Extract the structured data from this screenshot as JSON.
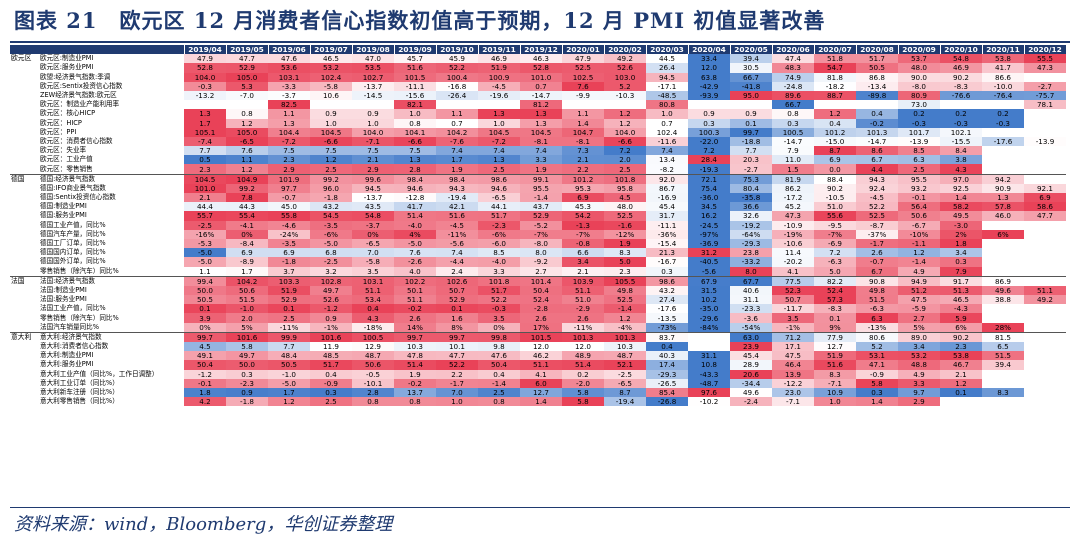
{
  "title": "图表 21　欧元区 12 月消费者信心指数初值高于预期，12 月 PMI 初值显著改善",
  "source": "资料来源：wind，Bloomberg，华创证券整理",
  "colors": {
    "header": "#1f3a70",
    "high": "#e8384f",
    "low": "#2f6dc4",
    "neutral": "#ffffff"
  },
  "months": [
    "2019/04",
    "2019/05",
    "2019/06",
    "2019/07",
    "2019/08",
    "2019/09",
    "2019/10",
    "2019/11",
    "2019/12",
    "2020/01",
    "2020/02",
    "2020/03",
    "2020/04",
    "2020/05",
    "2020/06",
    "2020/07",
    "2020/08",
    "2020/09",
    "2020/10",
    "2020/11",
    "2020/12"
  ],
  "groups": [
    {
      "region": "欧元区",
      "rows": [
        {
          "label": "欧元区:制造业PMI",
          "values": [
            "47.9",
            "47.7",
            "47.6",
            "46.5",
            "47.0",
            "45.7",
            "45.9",
            "46.9",
            "46.3",
            "47.9",
            "49.2",
            "44.5",
            "33.4",
            "39.4",
            "47.4",
            "51.8",
            "51.7",
            "53.7",
            "54.8",
            "53.8",
            "55.5"
          ]
        },
        {
          "label": "欧元区:服务业PMI",
          "values": [
            "52.8",
            "52.9",
            "53.6",
            "53.2",
            "53.5",
            "51.6",
            "52.2",
            "51.9",
            "52.8",
            "52.5",
            "52.6",
            "26.4",
            "12.0",
            "30.5",
            "48.3",
            "54.7",
            "50.5",
            "48.0",
            "46.9",
            "41.7",
            "47.3"
          ]
        },
        {
          "label": "欧盟:经济景气指数:季调",
          "values": [
            "104.0",
            "105.0",
            "103.1",
            "102.4",
            "102.7",
            "101.5",
            "100.4",
            "100.9",
            "101.0",
            "102.5",
            "103.0",
            "94.5",
            "63.8",
            "66.7",
            "74.9",
            "81.8",
            "86.8",
            "90.0",
            "90.2",
            "86.6",
            ""
          ]
        },
        {
          "label": "欧元区:Sentix投资信心指数",
          "values": [
            "-0.3",
            "5.3",
            "-3.3",
            "-5.8",
            "-13.7",
            "-11.1",
            "-16.8",
            "-4.5",
            "0.7",
            "7.6",
            "5.2",
            "-17.1",
            "-42.9",
            "-41.8",
            "-24.8",
            "-18.2",
            "-13.4",
            "-8.0",
            "-8.3",
            "-10.0",
            "-2.7"
          ]
        },
        {
          "label": "ZEW经济景气指数:欧元区",
          "values": [
            "-13.2",
            "-7.0",
            "-3.7",
            "10.6",
            "-14.5",
            "-15.6",
            "-26.4",
            "-19.6",
            "-14.7",
            "-9.9",
            "-10.3",
            "-48.5",
            "-93.9",
            "95.0",
            "89.6",
            "88.7",
            "-89.8",
            "80.9",
            "-76.6",
            "-76.4",
            "-75.7"
          ]
        },
        {
          "label": "欧元区：制造业产能利用率",
          "values": [
            "",
            "",
            "82.5",
            "",
            "",
            "82.1",
            "",
            "",
            "81.2",
            "",
            "",
            "80.8",
            "",
            "",
            "66.7",
            "",
            "",
            "73.0",
            "",
            "",
            "78.1"
          ]
        },
        {
          "label": "欧元区：核心HICP",
          "values": [
            "1.3",
            "0.8",
            "1.1",
            "0.9",
            "0.9",
            "1.0",
            "1.1",
            "1.3",
            "1.3",
            "1.1",
            "1.2",
            "1.0",
            "0.9",
            "0.9",
            "0.8",
            "1.2",
            "0.4",
            "0.2",
            "0.2",
            "0.2",
            ""
          ]
        },
        {
          "label": "欧元区：HICP",
          "values": [
            "1.7",
            "1.2",
            "1.3",
            "1.0",
            "1.0",
            "0.8",
            "0.7",
            "1.0",
            "1.3",
            "1.4",
            "1.2",
            "0.7",
            "0.3",
            "0.1",
            "0.3",
            "0.4",
            "-0.2",
            "-0.3",
            "-0.3",
            "-0.3",
            ""
          ]
        },
        {
          "label": "欧元区：PPI",
          "values": [
            "105.1",
            "105.0",
            "104.4",
            "104.5",
            "104.0",
            "104.1",
            "104.2",
            "104.5",
            "104.5",
            "104.7",
            "104.0",
            "102.4",
            "100.3",
            "99.7",
            "100.5",
            "101.2",
            "101.3",
            "101.7",
            "102.1",
            "",
            ""
          ]
        },
        {
          "label": "欧元区：消费者信心指数",
          "values": [
            "-7.4",
            "-6.5",
            "-7.2",
            "-6.6",
            "-7.1",
            "-6.6",
            "-7.6",
            "-7.2",
            "-8.1",
            "-8.1",
            "-6.6",
            "-11.6",
            "-22.0",
            "-18.8",
            "-14.7",
            "-15.0",
            "-14.7",
            "-13.9",
            "-15.5",
            "-17.6",
            "-13.9"
          ]
        },
        {
          "label": "欧元区：失业率",
          "values": [
            "7.7",
            "7.6",
            "7.5",
            "7.5",
            "7.5",
            "7.5",
            "7.4",
            "7.4",
            "7.4",
            "7.3",
            "7.2",
            "7.4",
            "7.2",
            "7.7",
            "7.9",
            "8.7",
            "8.6",
            "8.5",
            "8.4",
            "",
            ""
          ]
        },
        {
          "label": "欧元区：工业产值",
          "values": [
            "0.5",
            "1.1",
            "2.3",
            "1.2",
            "2.1",
            "1.3",
            "1.7",
            "1.3",
            "3.3",
            "2.1",
            "2.0",
            "13.4",
            "28.4",
            "20.3",
            "11.0",
            "6.9",
            "6.7",
            "6.3",
            "3.8",
            "",
            ""
          ]
        },
        {
          "label": "欧元区：零售销售",
          "values": [
            "2.3",
            "1.2",
            "2.9",
            "2.5",
            "2.9",
            "2.8",
            "1.9",
            "2.5",
            "1.9",
            "2.2",
            "2.5",
            "-8.2",
            "-19.3",
            "-2.7",
            "1.5",
            "0.0",
            "4.4",
            "2.5",
            "4.3",
            "",
            ""
          ]
        }
      ]
    },
    {
      "region": "德国",
      "rows": [
        {
          "label": "德国:经济景气指数",
          "values": [
            "104.5",
            "104.9",
            "101.9",
            "99.2",
            "99.6",
            "98.4",
            "98.4",
            "98.6",
            "99.1",
            "101.2",
            "101.8",
            "92.0",
            "72.1",
            "75.3",
            "81.9",
            "88.4",
            "94.3",
            "95.5",
            "97.0",
            "94.2",
            ""
          ]
        },
        {
          "label": "德国:IFO商业景气指数",
          "values": [
            "101.0",
            "99.2",
            "97.7",
            "96.0",
            "94.5",
            "94.6",
            "94.3",
            "94.6",
            "95.5",
            "95.3",
            "95.8",
            "86.7",
            "75.4",
            "80.4",
            "86.2",
            "90.2",
            "92.4",
            "93.2",
            "92.5",
            "90.9",
            "92.1"
          ]
        },
        {
          "label": "德国:Sentix投资信心指数",
          "values": [
            "2.1",
            "7.8",
            "-0.7",
            "-1.8",
            "-13.7",
            "-12.8",
            "-19.4",
            "-6.5",
            "-1.4",
            "6.9",
            "4.5",
            "-16.9",
            "-36.0",
            "-35.8",
            "-17.2",
            "-10.5",
            "-4.5",
            "-0.1",
            "1.4",
            "1.3",
            "6.9"
          ]
        },
        {
          "label": "德国:制造业PMI",
          "values": [
            "44.4",
            "44.3",
            "45.0",
            "43.2",
            "43.5",
            "41.7",
            "42.1",
            "44.1",
            "43.7",
            "45.3",
            "48.0",
            "45.4",
            "34.5",
            "36.6",
            "45.2",
            "51.0",
            "52.2",
            "56.4",
            "58.2",
            "57.8",
            "58.6"
          ]
        },
        {
          "label": "德国:服务业PMI",
          "values": [
            "55.7",
            "55.4",
            "55.8",
            "54.5",
            "54.8",
            "51.4",
            "51.6",
            "51.7",
            "52.9",
            "54.2",
            "52.5",
            "31.7",
            "16.2",
            "32.6",
            "47.3",
            "55.6",
            "52.5",
            "50.6",
            "49.5",
            "46.0",
            "47.7"
          ]
        },
        {
          "label": "德国工业产值，同比%",
          "values": [
            "-2.5",
            "-4.1",
            "-4.6",
            "-3.5",
            "-3.7",
            "-4.0",
            "-4.5",
            "-2.3",
            "-5.2",
            "-1.3",
            "-1.6",
            "-11.1",
            "-24.5",
            "-19.2",
            "-10.9",
            "-9.5",
            "-8.7",
            "-6.7",
            "-3.0",
            "",
            ""
          ]
        },
        {
          "label": "德国汽车产量，同比%",
          "values": [
            "-16%",
            "0%",
            "-24%",
            "-6%",
            "0%",
            "4%",
            "-11%",
            "-6%",
            "-7%",
            "-7%",
            "-12%",
            "-36%",
            "-97%",
            "-64%",
            "-19%",
            "-7%",
            "-37%",
            "-10%",
            "2%",
            "6%",
            ""
          ]
        },
        {
          "label": "德国工厂订单，同比%",
          "values": [
            "-5.3",
            "-8.4",
            "-3.5",
            "-5.0",
            "-6.5",
            "-5.0",
            "-5.6",
            "-6.0",
            "-8.0",
            "-0.8",
            "1.9",
            "-15.4",
            "-36.9",
            "-29.3",
            "-10.6",
            "-6.9",
            "-1.7",
            "-1.1",
            "1.8",
            "",
            ""
          ]
        },
        {
          "label": "德国国内订单，同比%",
          "values": [
            "-5.0",
            "6.9",
            "6.9",
            "6.8",
            "7.0",
            "7.6",
            "7.4",
            "8.5",
            "8.0",
            "6.6",
            "8.3",
            "21.3",
            "31.2",
            "23.8",
            "11.4",
            "7.2",
            "2.6",
            "1.2",
            "3.4",
            "",
            ""
          ]
        },
        {
          "label": "德国国外订单，同比%",
          "values": [
            "-5.0",
            "-8.9",
            "-1.8",
            "-2.5",
            "-5.8",
            "-2.6",
            "-4.4",
            "-4.0",
            "-9.2",
            "3.4",
            "5.0",
            "-16.7",
            "-40.5",
            "-33.2",
            "-20.2",
            "-6.3",
            "-0.7",
            "-1.4",
            "0.3",
            "",
            ""
          ]
        },
        {
          "label": "零售销售（除汽车）同比%",
          "values": [
            "1.1",
            "1.7",
            "3.7",
            "3.2",
            "3.5",
            "4.0",
            "2.4",
            "3.3",
            "2.7",
            "2.1",
            "2.3",
            "0.3",
            "-5.6",
            "8.0",
            "4.1",
            "5.0",
            "6.7",
            "4.9",
            "7.9",
            "",
            ""
          ]
        }
      ]
    },
    {
      "region": "法国",
      "rows": [
        {
          "label": "法国:经济景气指数",
          "values": [
            "99.4",
            "104.2",
            "103.3",
            "102.8",
            "103.1",
            "102.2",
            "102.6",
            "101.8",
            "101.4",
            "103.9",
            "105.5",
            "98.6",
            "67.9",
            "67.7",
            "77.5",
            "82.2",
            "90.8",
            "94.9",
            "91.7",
            "86.9",
            ""
          ]
        },
        {
          "label": "法国:制造业PMI",
          "values": [
            "50.0",
            "50.6",
            "51.9",
            "49.7",
            "51.1",
            "50.1",
            "50.7",
            "51.7",
            "50.4",
            "51.1",
            "49.8",
            "43.2",
            "31.5",
            "40.6",
            "52.3",
            "52.4",
            "49.8",
            "51.2",
            "51.3",
            "49.6",
            "51.1"
          ]
        },
        {
          "label": "法国:服务业PMI",
          "values": [
            "50.5",
            "51.5",
            "52.9",
            "52.6",
            "53.4",
            "51.1",
            "52.9",
            "52.2",
            "52.4",
            "51.0",
            "52.5",
            "27.4",
            "10.2",
            "31.1",
            "50.7",
            "57.3",
            "51.5",
            "47.5",
            "46.5",
            "38.8",
            "49.2"
          ]
        },
        {
          "label": "法国工业产值，同比%",
          "values": [
            "0.1",
            "-1.0",
            "0.1",
            "-1.2",
            "0.4",
            "-0.2",
            "0.1",
            "-0.3",
            "-2.8",
            "-2.9",
            "-1.4",
            "-17.6",
            "-35.0",
            "-23.3",
            "-11.7",
            "-8.3",
            "-6.3",
            "-5.9",
            "-4.3",
            "",
            ""
          ]
        },
        {
          "label": "零售销售（除汽车）同比%",
          "values": [
            "3.9",
            "2.0",
            "2.5",
            "0.9",
            "4.3",
            "2.6",
            "1.6",
            "3.5",
            "2.6",
            "2.6",
            "1.2",
            "-13.5",
            "-29.6",
            "-3.6",
            "3.5",
            "0.1",
            "6.3",
            "2.7",
            "5.9",
            "",
            ""
          ]
        },
        {
          "label": "法国汽车销量同比%",
          "values": [
            "0%",
            "5%",
            "-11%",
            "-1%",
            "-18%",
            "14%",
            "8%",
            "0%",
            "17%",
            "-11%",
            "-4%",
            "-73%",
            "-84%",
            "-54%",
            "-1%",
            "9%",
            "-13%",
            "5%",
            "6%",
            "28%",
            ""
          ]
        }
      ]
    },
    {
      "region": "意大利",
      "rows": [
        {
          "label": "意大利:经济景气指数",
          "values": [
            "99.7",
            "101.6",
            "99.9",
            "101.6",
            "100.5",
            "99.7",
            "99.7",
            "99.8",
            "101.5",
            "101.3",
            "101.3",
            "83.7",
            "",
            "63.0",
            "71.2",
            "77.9",
            "80.6",
            "89.0",
            "90.2",
            "81.5",
            ""
          ]
        },
        {
          "label": "意大利:消费者信心指数",
          "values": [
            "4.5",
            "5.8",
            "7.7",
            "11.9",
            "12.9",
            "10.3",
            "10.1",
            "9.8",
            "12.0",
            "12.0",
            "10.3",
            "0.4",
            "",
            "23.9",
            "17.1",
            "12.7",
            "5.2",
            "3.4",
            "2.3",
            "6.5",
            ""
          ]
        },
        {
          "label": "意大利:制造业PMI",
          "values": [
            "49.1",
            "49.7",
            "48.4",
            "48.5",
            "48.7",
            "47.8",
            "47.7",
            "47.6",
            "46.2",
            "48.9",
            "48.7",
            "40.3",
            "31.1",
            "45.4",
            "47.5",
            "51.9",
            "53.1",
            "53.2",
            "53.8",
            "51.5",
            ""
          ]
        },
        {
          "label": "意大利:服务业PMI",
          "values": [
            "50.4",
            "50.0",
            "50.5",
            "51.7",
            "50.6",
            "51.4",
            "52.2",
            "50.4",
            "51.1",
            "51.4",
            "52.1",
            "17.4",
            "10.8",
            "28.9",
            "46.4",
            "51.6",
            "47.1",
            "48.8",
            "46.7",
            "39.4",
            ""
          ]
        },
        {
          "label": "意大利工业产值（同比%，工作日调整）",
          "values": [
            "-1.2",
            "0.3",
            "-1.0",
            "0.4",
            "-0.5",
            "1.9",
            "2.2",
            "0.4",
            "4.1",
            "0.2",
            "-2.5",
            "-29.3",
            "-43.3",
            "20.6",
            "13.9",
            "8.3",
            "-0.9",
            "4.9",
            "2.1",
            "",
            ""
          ]
        },
        {
          "label": "意大利工业订单（同比%）",
          "values": [
            "-0.1",
            "-2.3",
            "-5.0",
            "-0.9",
            "-10.1",
            "-0.2",
            "-1.7",
            "-1.4",
            "6.0",
            "-2.0",
            "-6.5",
            "-26.5",
            "-48.7",
            "-34.4",
            "-12.2",
            "-7.1",
            "5.8",
            "3.3",
            "1.2",
            "",
            ""
          ]
        },
        {
          "label": "意大利新车注册（同比%）",
          "values": [
            "1.8",
            "0.9",
            "1.7",
            "0.3",
            "2.8",
            "13.7",
            "7.0",
            "2.5",
            "12.7",
            "5.8",
            "8.7",
            "85.4",
            "97.6",
            "49.6",
            "23.0",
            "10.9",
            "0.3",
            "9.7",
            "0.1",
            "8.3",
            ""
          ]
        },
        {
          "label": "意大利零售销售（同比%）",
          "values": [
            "4.2",
            "-1.8",
            "1.2",
            "2.5",
            "0.8",
            "0.8",
            "1.0",
            "0.8",
            "1.4",
            "5.8",
            "-19.4",
            "-26.8",
            "-10.2",
            "-2.4",
            "-7.1",
            "1.0",
            "1.4",
            "2.9",
            "",
            "",
            ""
          ]
        }
      ]
    }
  ]
}
